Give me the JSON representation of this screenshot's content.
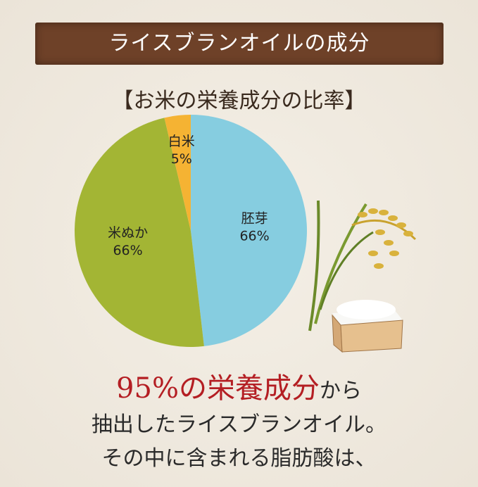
{
  "chart_data": {
    "type": "pie",
    "title": "ライスブランオイルの成分",
    "subtitle": "【お米の栄養成分の比率】",
    "categories": [
      "胚芽",
      "米ぬか",
      "白米"
    ],
    "values": [
      66,
      66,
      5
    ],
    "value_labels": [
      "66%",
      "66%",
      "5%"
    ],
    "colors": [
      "#86cde0",
      "#a3b534",
      "#f5b333"
    ]
  },
  "body": {
    "line1_highlight": "95%の栄養成分",
    "line1_rest": "から",
    "line2": "抽出したライスブランオイル。",
    "line3": "その中に含まれる脂肪酸は、"
  }
}
